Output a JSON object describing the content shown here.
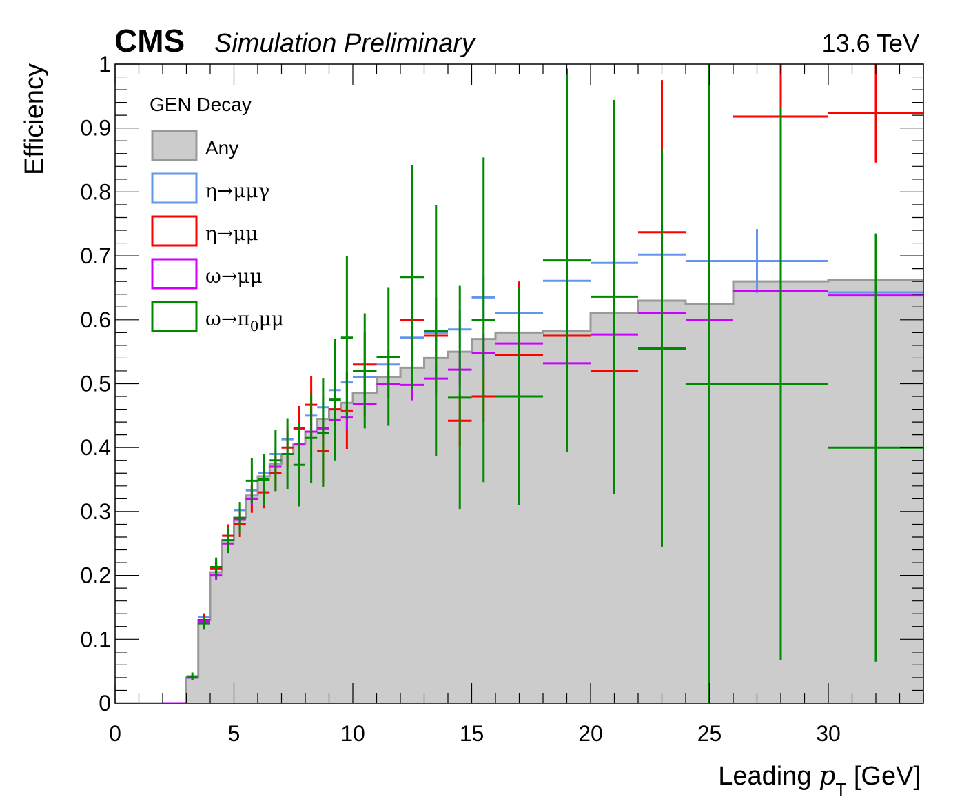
{
  "header": {
    "experiment": "CMS",
    "status": "Simulation Preliminary",
    "energy": "13.6 TeV"
  },
  "chart_data": {
    "type": "line",
    "xlabel_prefix": "Leading ",
    "xlabel_var": "p",
    "xlabel_sub": "T",
    "xlabel_unit": " [GeV]",
    "ylabel": "Efficiency",
    "xlim": [
      0,
      34
    ],
    "ylim": [
      0,
      1
    ],
    "xticks": [
      0,
      5,
      10,
      15,
      20,
      25,
      30
    ],
    "xtick_labels": [
      "0",
      "5",
      "10",
      "15",
      "20",
      "25",
      "30"
    ],
    "yticks": [
      0,
      0.1,
      0.2,
      0.3,
      0.4,
      0.5,
      0.6,
      0.7,
      0.8,
      0.9,
      1
    ],
    "ytick_labels": [
      "0",
      "0.1",
      "0.2",
      "0.3",
      "0.4",
      "0.5",
      "0.6",
      "0.7",
      "0.8",
      "0.9",
      "1"
    ],
    "legend": {
      "header": "GEN Decay",
      "placement": "top-left",
      "entries": [
        {
          "label": "Any",
          "color": "#999999",
          "fill": "#cccccc"
        },
        {
          "label": "η→μμγ",
          "color": "#6495ed"
        },
        {
          "label": "η→μμ",
          "color": "#ff0000"
        },
        {
          "label": "ω→μμ",
          "color": "#cc00ff"
        },
        {
          "label_main": "ω→π",
          "label_sub": "0",
          "label_tail": "μμ",
          "color": "#008800"
        }
      ]
    },
    "histogram": {
      "name": "Any",
      "color": "#999999",
      "fill": "#cccccc",
      "edges": [
        0,
        0.5,
        1,
        1.5,
        2,
        2.5,
        3,
        3.5,
        4,
        4.5,
        5,
        5.5,
        6,
        6.5,
        7,
        7.5,
        8,
        8.5,
        9,
        9.5,
        10,
        11,
        12,
        13,
        14,
        15,
        16,
        18,
        20,
        22,
        24,
        26,
        30,
        34
      ],
      "values": [
        0,
        0,
        0,
        0,
        0,
        0,
        0.04,
        0.13,
        0.205,
        0.255,
        0.29,
        0.325,
        0.355,
        0.375,
        0.39,
        0.405,
        0.425,
        0.445,
        0.46,
        0.47,
        0.485,
        0.51,
        0.525,
        0.54,
        0.55,
        0.57,
        0.58,
        0.582,
        0.61,
        0.63,
        0.625,
        0.66,
        0.662
      ]
    },
    "series": [
      {
        "name": "η→μμγ",
        "color": "#6495ed",
        "points": [
          [
            2.25,
            0.25,
            0,
            0
          ],
          [
            2.75,
            0.25,
            0,
            0
          ],
          [
            3.25,
            0.25,
            0.04,
            0.004
          ],
          [
            3.75,
            0.25,
            0.135,
            0.006
          ],
          [
            4.25,
            0.25,
            0.212,
            0.008
          ],
          [
            4.75,
            0.25,
            0.262,
            0.008
          ],
          [
            5.25,
            0.25,
            0.302,
            0.008
          ],
          [
            5.75,
            0.25,
            0.333,
            0.009
          ],
          [
            6.25,
            0.25,
            0.36,
            0.01
          ],
          [
            6.75,
            0.25,
            0.39,
            0.01
          ],
          [
            7.25,
            0.25,
            0.413,
            0.012
          ],
          [
            7.75,
            0.25,
            0.43,
            0.012
          ],
          [
            8.25,
            0.25,
            0.45,
            0.014
          ],
          [
            8.75,
            0.25,
            0.463,
            0.015
          ],
          [
            9.25,
            0.25,
            0.49,
            0.016
          ],
          [
            9.75,
            0.25,
            0.502,
            0.018
          ],
          [
            10.5,
            0.5,
            0.51,
            0.02
          ],
          [
            11.5,
            0.5,
            0.53,
            0.022
          ],
          [
            12.5,
            0.5,
            0.572,
            0.025
          ],
          [
            13.5,
            0.5,
            0.58,
            0.028
          ],
          [
            14.5,
            0.5,
            0.585,
            0.03
          ],
          [
            15.5,
            0.5,
            0.635,
            0.033
          ],
          [
            17,
            1,
            0.61,
            0.035
          ],
          [
            19,
            1,
            0.661,
            0.04
          ],
          [
            21,
            1,
            0.689,
            0.045
          ],
          [
            23,
            1,
            0.702,
            0.05
          ],
          [
            27,
            3,
            0.692,
            0.05
          ],
          [
            32,
            2,
            0.643,
            0.06
          ]
        ]
      },
      {
        "name": "η→μμ",
        "color": "#ff0000",
        "points": [
          [
            3.75,
            0.25,
            0.13,
            0.01
          ],
          [
            4.25,
            0.25,
            0.21,
            0.015
          ],
          [
            4.75,
            0.25,
            0.262,
            0.018
          ],
          [
            5.25,
            0.25,
            0.28,
            0.02
          ],
          [
            5.75,
            0.25,
            0.32,
            0.022
          ],
          [
            6.25,
            0.25,
            0.33,
            0.025
          ],
          [
            6.75,
            0.25,
            0.36,
            0.028
          ],
          [
            7.25,
            0.25,
            0.4,
            0.03
          ],
          [
            7.75,
            0.25,
            0.43,
            0.035
          ],
          [
            8.25,
            0.25,
            0.467,
            0.045
          ],
          [
            8.75,
            0.25,
            0.395,
            0.05
          ],
          [
            9.25,
            0.25,
            0.46,
            0.055
          ],
          [
            9.75,
            0.25,
            0.458,
            0.06
          ],
          [
            10.5,
            0.5,
            0.53,
            0.05
          ],
          [
            12.5,
            0.5,
            0.6,
            0.06
          ],
          [
            13.5,
            0.5,
            0.575,
            0.06
          ],
          [
            14.5,
            0.5,
            0.442,
            0.04
          ],
          [
            15.5,
            0.5,
            0.48,
            0.04
          ],
          [
            17,
            1,
            0.545,
            0.115
          ],
          [
            19,
            1,
            0.575,
            0.04
          ],
          [
            21,
            1,
            0.52,
            0.05
          ],
          [
            23,
            1,
            0.737,
            0.238
          ],
          [
            28,
            2,
            0.918,
            0.082
          ],
          [
            32,
            2,
            0.923,
            0.077
          ]
        ]
      },
      {
        "name": "ω→μμ",
        "color": "#cc00ff",
        "points": [
          [
            2.25,
            0.25,
            0,
            0
          ],
          [
            2.75,
            0.25,
            0,
            0
          ],
          [
            3.25,
            0.25,
            0.04,
            0.004
          ],
          [
            3.75,
            0.25,
            0.128,
            0.006
          ],
          [
            4.25,
            0.25,
            0.2,
            0.008
          ],
          [
            4.75,
            0.25,
            0.25,
            0.008
          ],
          [
            5.25,
            0.25,
            0.288,
            0.009
          ],
          [
            5.75,
            0.25,
            0.32,
            0.01
          ],
          [
            6.25,
            0.25,
            0.35,
            0.01
          ],
          [
            6.75,
            0.25,
            0.37,
            0.011
          ],
          [
            7.25,
            0.25,
            0.39,
            0.012
          ],
          [
            7.75,
            0.25,
            0.405,
            0.013
          ],
          [
            8.25,
            0.25,
            0.425,
            0.014
          ],
          [
            8.75,
            0.25,
            0.43,
            0.015
          ],
          [
            9.25,
            0.25,
            0.443,
            0.016
          ],
          [
            9.75,
            0.25,
            0.447,
            0.018
          ],
          [
            10.5,
            0.5,
            0.468,
            0.02
          ],
          [
            11.5,
            0.5,
            0.5,
            0.022
          ],
          [
            12.5,
            0.5,
            0.498,
            0.024
          ],
          [
            13.5,
            0.5,
            0.508,
            0.026
          ],
          [
            14.5,
            0.5,
            0.522,
            0.028
          ],
          [
            15.5,
            0.5,
            0.548,
            0.03
          ],
          [
            17,
            1,
            0.563,
            0.032
          ],
          [
            19,
            1,
            0.532,
            0.035
          ],
          [
            21,
            1,
            0.577,
            0.04
          ],
          [
            23,
            1,
            0.61,
            0.045
          ],
          [
            25,
            1,
            0.6,
            0.05
          ],
          [
            28,
            2,
            0.645,
            0.05
          ],
          [
            32,
            2,
            0.638,
            0.06
          ]
        ]
      },
      {
        "name": "ω→π0μμ",
        "color": "#008800",
        "points": [
          [
            3.25,
            0.25,
            0.042,
            0.006
          ],
          [
            3.75,
            0.25,
            0.125,
            0.01
          ],
          [
            4.25,
            0.25,
            0.213,
            0.015
          ],
          [
            4.75,
            0.25,
            0.255,
            0.02
          ],
          [
            5.25,
            0.25,
            0.29,
            0.025
          ],
          [
            5.75,
            0.25,
            0.348,
            0.035
          ],
          [
            6.25,
            0.25,
            0.35,
            0.04
          ],
          [
            6.75,
            0.25,
            0.38,
            0.048
          ],
          [
            7.25,
            0.25,
            0.39,
            0.055
          ],
          [
            7.75,
            0.25,
            0.373,
            0.065
          ],
          [
            8.25,
            0.25,
            0.415,
            0.07
          ],
          [
            8.75,
            0.25,
            0.423,
            0.085
          ],
          [
            9.25,
            0.25,
            0.475,
            0.095
          ],
          [
            9.75,
            0.25,
            0.572,
            0.127
          ],
          [
            10.5,
            0.5,
            0.52,
            0.09
          ],
          [
            11.5,
            0.5,
            0.542,
            0.108
          ],
          [
            12.5,
            0.5,
            0.667,
            0.175
          ],
          [
            13.5,
            0.5,
            0.583,
            0.196
          ],
          [
            14.5,
            0.5,
            0.478,
            0.175
          ],
          [
            15.5,
            0.5,
            0.6,
            0.254
          ],
          [
            17,
            1,
            0.48,
            0.17
          ],
          [
            19,
            1,
            0.693,
            0.3
          ],
          [
            21,
            1,
            0.636,
            0.308
          ],
          [
            23,
            1,
            0.555,
            0.31
          ],
          [
            25,
            1,
            0.5,
            0.5
          ],
          [
            28,
            2,
            0.5,
            0.433
          ],
          [
            32,
            2,
            0.4,
            0.335
          ]
        ]
      }
    ]
  }
}
